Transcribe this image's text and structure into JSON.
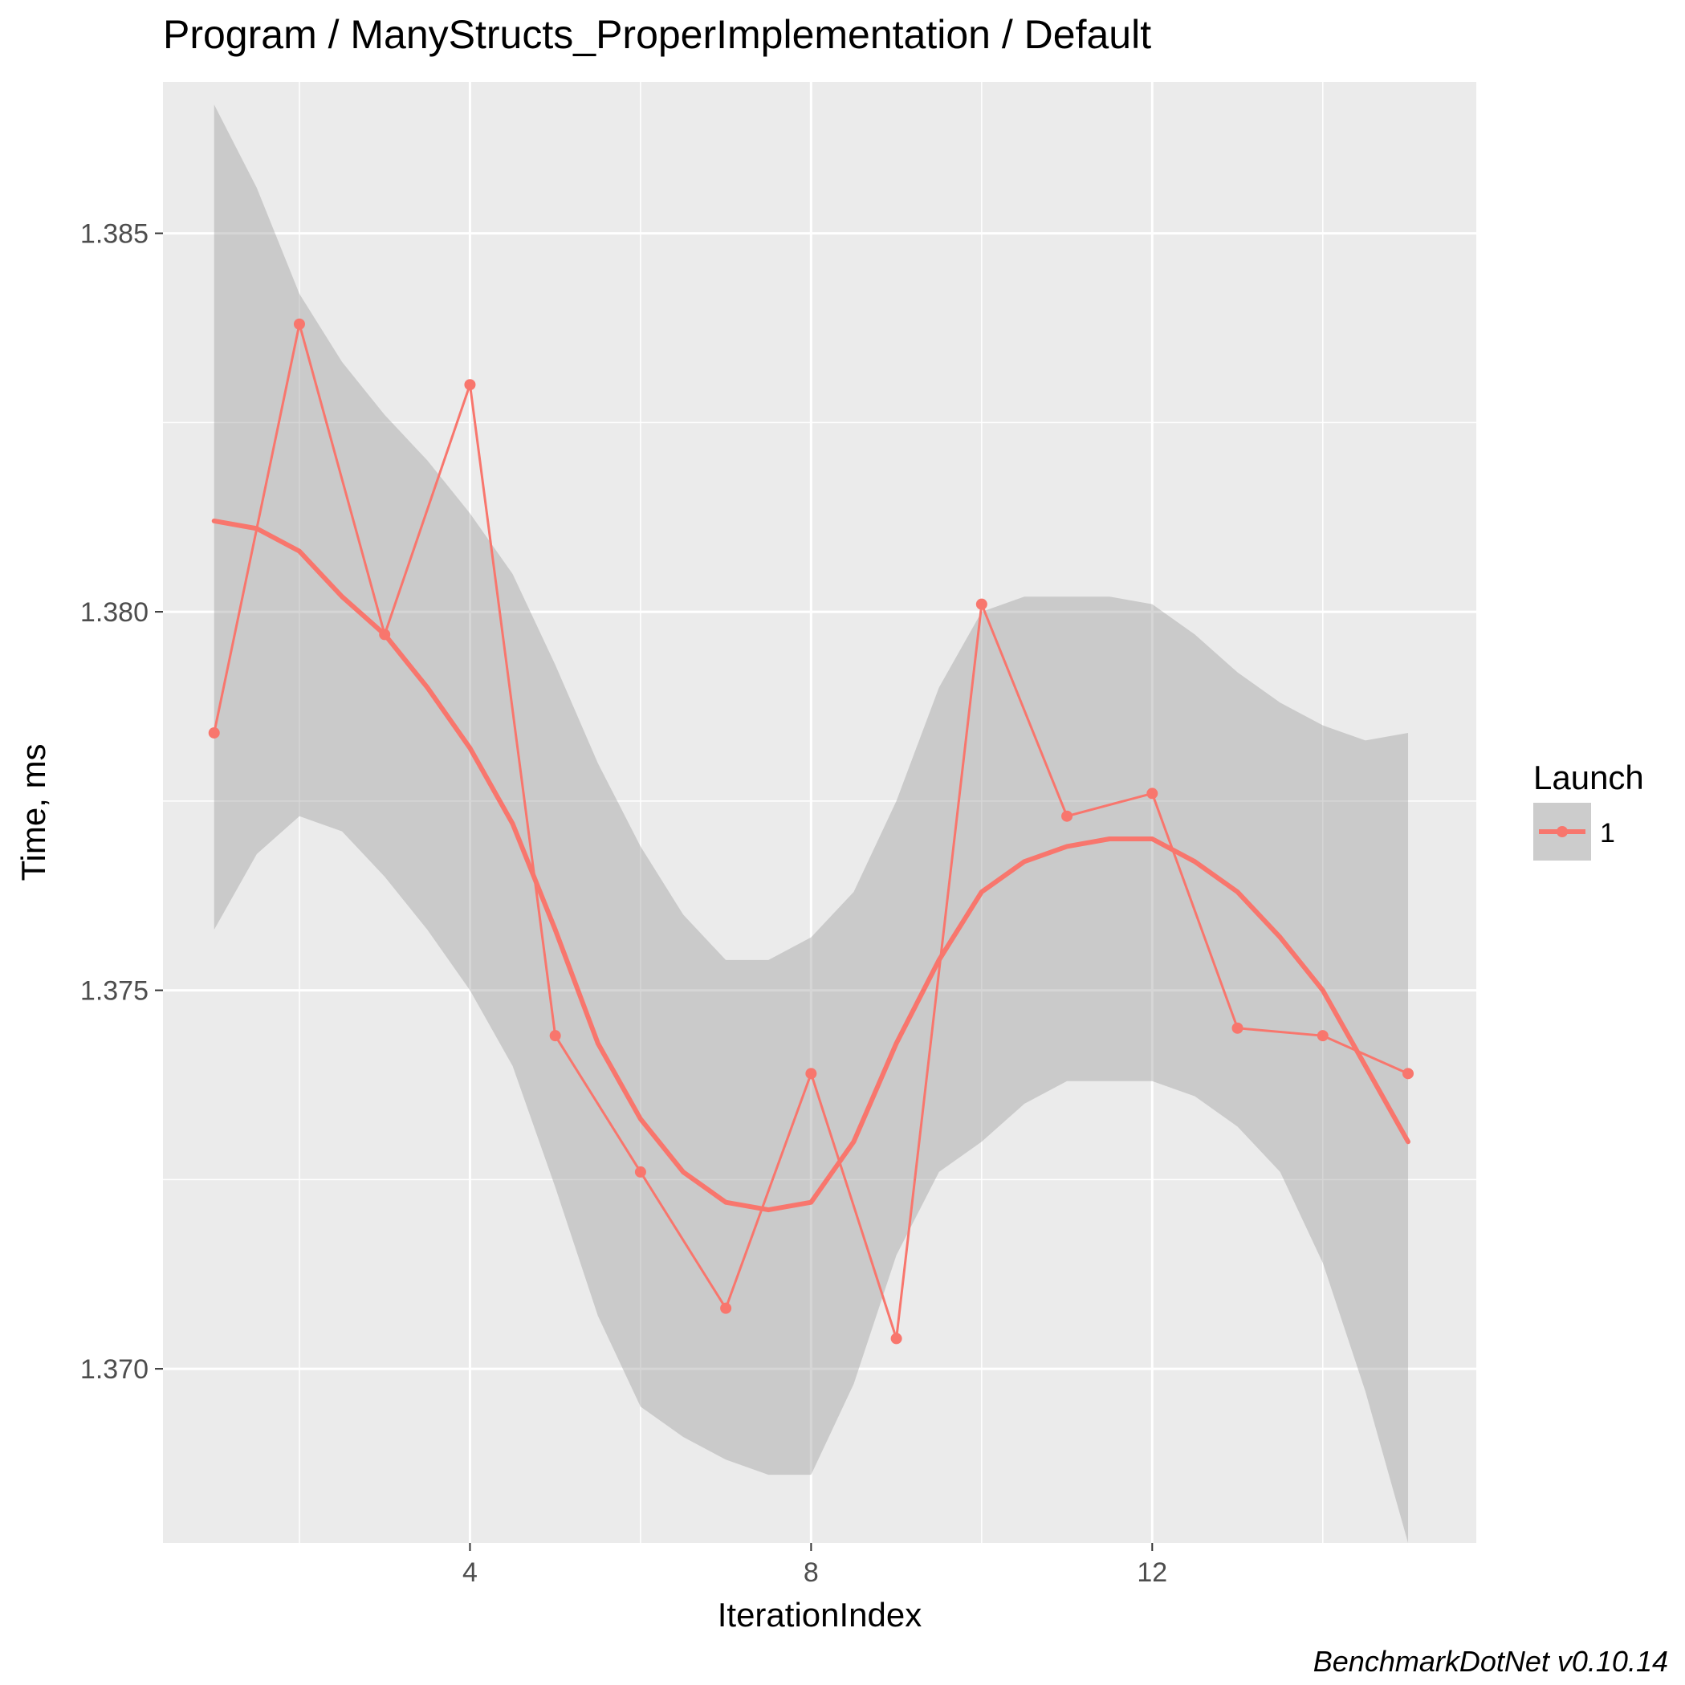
{
  "chart_data": {
    "type": "line",
    "title": "Program / ManyStructs_ProperImplementation / Default",
    "xlabel": "IterationIndex",
    "ylabel": "Time, ms",
    "xlim": [
      0.4,
      15.8
    ],
    "ylim": [
      1.3677,
      1.387
    ],
    "x_ticks": [
      4,
      8,
      12
    ],
    "x_tick_labels": [
      "4",
      "8",
      "12"
    ],
    "x_minor_ticks": [
      2,
      6,
      10,
      14
    ],
    "y_ticks": [
      1.37,
      1.375,
      1.38,
      1.385
    ],
    "y_tick_labels": [
      "1.370",
      "1.375",
      "1.380",
      "1.385"
    ],
    "y_minor_ticks": [
      1.3675,
      1.3725,
      1.3775,
      1.3825
    ],
    "grid": true,
    "legend": {
      "title": "Launch",
      "position": "right"
    },
    "series": [
      {
        "name": "1",
        "color": "#f8766d",
        "x": [
          1,
          2,
          3,
          4,
          5,
          6,
          7,
          8,
          9,
          10,
          11,
          12,
          13,
          14,
          15
        ],
        "values": [
          1.3784,
          1.3838,
          1.3797,
          1.383,
          1.3744,
          1.3726,
          1.3708,
          1.3739,
          1.3704,
          1.3801,
          1.3773,
          1.3776,
          1.3745,
          1.3744,
          1.3739
        ]
      }
    ],
    "smooth": {
      "x": [
        1,
        1.5,
        2,
        2.5,
        3,
        3.5,
        4,
        4.5,
        5,
        5.5,
        6,
        6.5,
        7,
        7.5,
        8,
        8.5,
        9,
        9.5,
        10,
        10.5,
        11,
        11.5,
        12,
        12.5,
        13,
        13.5,
        14,
        14.5,
        15
      ],
      "fit": [
        1.3812,
        1.3811,
        1.3808,
        1.3802,
        1.3797,
        1.379,
        1.3782,
        1.3772,
        1.3758,
        1.3743,
        1.3733,
        1.3726,
        1.3722,
        1.3721,
        1.3722,
        1.373,
        1.3743,
        1.3754,
        1.3763,
        1.3767,
        1.3769,
        1.377,
        1.377,
        1.3767,
        1.3763,
        1.3757,
        1.375,
        1.374,
        1.373
      ],
      "lower": [
        1.3758,
        1.3768,
        1.3773,
        1.3771,
        1.3765,
        1.3758,
        1.375,
        1.374,
        1.3724,
        1.3707,
        1.3695,
        1.3691,
        1.3688,
        1.3686,
        1.3686,
        1.3698,
        1.3715,
        1.3726,
        1.373,
        1.3735,
        1.3738,
        1.3738,
        1.3738,
        1.3736,
        1.3732,
        1.3726,
        1.3714,
        1.3697,
        1.3677
      ],
      "upper": [
        1.3867,
        1.3856,
        1.3842,
        1.3833,
        1.3826,
        1.382,
        1.3813,
        1.3805,
        1.3793,
        1.378,
        1.3769,
        1.376,
        1.3754,
        1.3754,
        1.3757,
        1.3763,
        1.3775,
        1.379,
        1.38,
        1.3802,
        1.3802,
        1.3802,
        1.3801,
        1.3797,
        1.3792,
        1.3788,
        1.3785,
        1.3783,
        1.3784
      ]
    }
  },
  "caption": "BenchmarkDotNet v0.10.14"
}
